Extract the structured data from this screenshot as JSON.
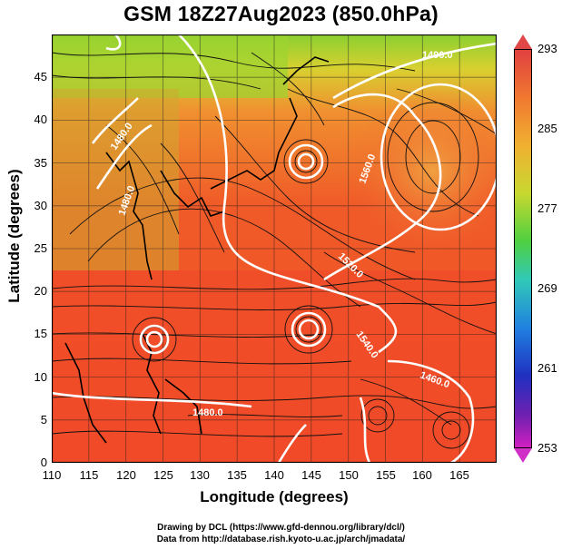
{
  "title": "GSM 18Z27Aug2023 (850.0hPa)",
  "axes": {
    "xlabel": "Longitude (degrees)",
    "ylabel": "Latitude  (degrees)",
    "xticks": [
      "110",
      "115",
      "120",
      "125",
      "130",
      "135",
      "140",
      "145",
      "150",
      "155",
      "160",
      "165"
    ],
    "yticks": [
      "0",
      "5",
      "10",
      "15",
      "20",
      "25",
      "30",
      "35",
      "40",
      "45"
    ],
    "xlim": [
      110,
      170
    ],
    "ylim": [
      0,
      50
    ]
  },
  "colorbar": {
    "labels": [
      "293",
      "285",
      "277",
      "269",
      "261",
      "253"
    ]
  },
  "contour_labels": [
    "1490.0",
    "1560.0",
    "1520.0",
    "1540.0",
    "1480.0",
    "1460.0",
    "1480.0",
    "1480.0"
  ],
  "credits": {
    "line1": "Drawing by DCL (https://www.gfd-dennou.org/library/dcl/)",
    "line2": "Data from http://database.rish.kyoto-u.ac.jp/arch/jmadata/"
  }
}
